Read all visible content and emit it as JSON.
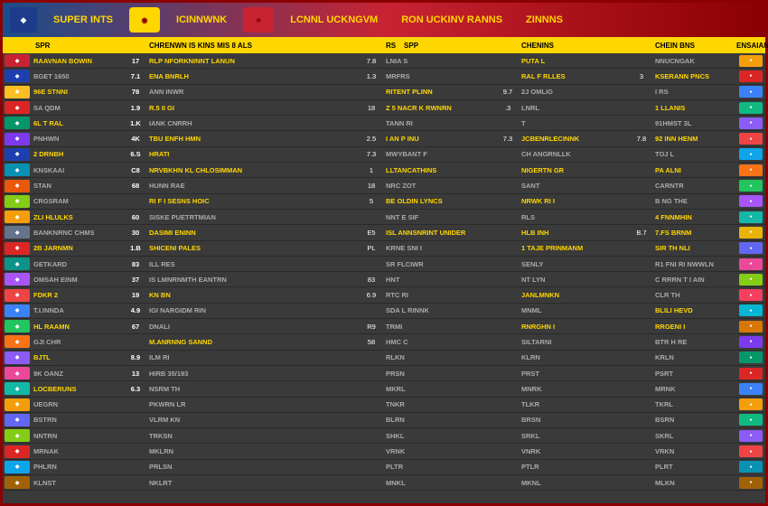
{
  "banner": {
    "tabs": [
      "SUPER INTS",
      "ICINNWNK",
      "LCNNL UCKNGVM",
      "RON UCKINV RANNS",
      "ZINNNS"
    ]
  },
  "headers": {
    "h1": "SPR",
    "h2": "CHRENWN IS KINS MIS 8 ALS",
    "h3": "RS",
    "h4": "SPP",
    "h5": "CHENINS",
    "h6": "CHEIN BNS",
    "h7": "ENSAIAN"
  },
  "colors": {
    "icons": [
      "#c82333",
      "#1e40af",
      "#fbbf24",
      "#dc2626",
      "#059669",
      "#7c3aed",
      "#1e40af",
      "#0891b2",
      "#ea580c",
      "#84cc16",
      "#f59e0b",
      "#64748b",
      "#dc2626",
      "#0d9488",
      "#a855f7",
      "#ef4444",
      "#3b82f6",
      "#22c55e",
      "#f97316",
      "#8b5cf6",
      "#ec4899",
      "#14b8a6",
      "#f59e0b",
      "#6366f1",
      "#84cc16",
      "#dc2626",
      "#0ea5e9",
      "#a16207"
    ],
    "logos": [
      "#f59e0b",
      "#dc2626",
      "#3b82f6",
      "#10b981",
      "#8b5cf6",
      "#ef4444",
      "#0ea5e9",
      "#f97316",
      "#22c55e",
      "#a855f7",
      "#14b8a6",
      "#eab308",
      "#6366f1",
      "#ec4899",
      "#84cc16",
      "#f43f5e",
      "#06b6d4",
      "#d97706",
      "#7c3aed",
      "#059669",
      "#dc2626",
      "#3b82f6",
      "#f59e0b",
      "#10b981",
      "#8b5cf6",
      "#ef4444",
      "#0891b2",
      "#a16207"
    ]
  },
  "left": [
    {
      "name": "RAAVNAN BOWIN",
      "n1": "17",
      "dim": false
    },
    {
      "name": "BGET 1650",
      "n1": "7.1",
      "dim": true
    },
    {
      "name": "96E STNNI",
      "n1": "78",
      "dim": false
    },
    {
      "name": "SA QDM",
      "n1": "1.9",
      "dim": true
    },
    {
      "name": "6L T RAL",
      "n1": "1.K",
      "dim": false
    },
    {
      "name": "PNHWN",
      "n1": "4K",
      "dim": true
    },
    {
      "name": "2 DRNBH",
      "n1": "6.S",
      "dim": false
    },
    {
      "name": "KNSKAAI",
      "n1": "C8",
      "dim": true
    },
    {
      "name": "STAN",
      "n1": "68",
      "dim": true
    },
    {
      "name": "CRGSRAM",
      "n1": "",
      "dim": true
    },
    {
      "name": "ZLI HLULKS",
      "n1": "60",
      "dim": false
    },
    {
      "name": "BANKNRNC CHMS",
      "n1": "30",
      "dim": true
    },
    {
      "name": "2B JARNMN",
      "n1": "1.B",
      "dim": false
    },
    {
      "name": "GETKARD",
      "n1": "83",
      "dim": true
    },
    {
      "name": "OMSAH EINM",
      "n1": "37",
      "dim": true
    },
    {
      "name": "FDKR 2",
      "n1": "19",
      "dim": false
    },
    {
      "name": "T.I.INNDA",
      "n1": "4.9",
      "dim": true
    },
    {
      "name": "HL RAAMN",
      "n1": "67",
      "dim": false
    },
    {
      "name": "GJI CHR",
      "n1": "",
      "dim": true
    },
    {
      "name": "BJTL",
      "n1": "8.9",
      "dim": false
    },
    {
      "name": "9K OANZ",
      "n1": "13",
      "dim": true
    },
    {
      "name": "LOCBERUNS",
      "n1": "6.3",
      "dim": false
    },
    {
      "name": "UEGRN",
      "n1": "",
      "dim": true
    },
    {
      "name": "BSTRN",
      "n1": "",
      "dim": true
    },
    {
      "name": "NNTRN",
      "n1": "",
      "dim": true
    },
    {
      "name": "MRNAK",
      "n1": "",
      "dim": true
    },
    {
      "name": "PHLRN",
      "n1": "",
      "dim": true
    },
    {
      "name": "KLNST",
      "n1": "",
      "dim": true
    }
  ],
  "mid": [
    {
      "name": "RLP NFORKNINNT LANUN",
      "n": "7.8",
      "dim": false
    },
    {
      "name": "ENA BNRLH",
      "n": "1.3",
      "dim": false
    },
    {
      "name": "ANN INWR",
      "n": "",
      "dim": true
    },
    {
      "name": "R.5 II GI",
      "n": "18",
      "dim": false
    },
    {
      "name": "IANK CNRRH",
      "n": "",
      "dim": true
    },
    {
      "name": "TBU ENFH HMN",
      "n": "2.5",
      "dim": false
    },
    {
      "name": "HRATI",
      "n": "7.3",
      "dim": false
    },
    {
      "name": "NRVBKHN KL CHLOSIMMAN",
      "n": "1",
      "dim": false
    },
    {
      "name": "HUNN RAE",
      "n": "18",
      "dim": true
    },
    {
      "name": "RI F I SESNS HOIC",
      "n": "5",
      "dim": false
    },
    {
      "name": "SISKE PUETRTMIAN",
      "n": "",
      "dim": true
    },
    {
      "name": "DASIMI ENINN",
      "n": "E5",
      "dim": false
    },
    {
      "name": "SHICENI PALES",
      "n": "PL",
      "dim": false
    },
    {
      "name": "ILL RES",
      "n": "",
      "dim": true
    },
    {
      "name": "IS LMNRNMTH EANTRN",
      "n": "83",
      "dim": true
    },
    {
      "name": "KN BN",
      "n": "6.9",
      "dim": false
    },
    {
      "name": "IGI NARGIDM RIN",
      "n": "",
      "dim": true
    },
    {
      "name": "DNALI",
      "n": "R9",
      "dim": true
    },
    {
      "name": "M.ANRNNG SANND",
      "n": "58",
      "dim": false
    },
    {
      "name": "ILM RI",
      "n": "",
      "dim": true
    },
    {
      "name": "HIRB 35/193",
      "n": "",
      "dim": true
    },
    {
      "name": "NSRM TH",
      "n": "",
      "dim": true
    },
    {
      "name": "PKWRN LR",
      "n": "",
      "dim": true
    },
    {
      "name": "VLRM KN",
      "n": "",
      "dim": true
    },
    {
      "name": "TRKSN",
      "n": "",
      "dim": true
    },
    {
      "name": "MKLRN",
      "n": "",
      "dim": true
    },
    {
      "name": "PRLSN",
      "n": "",
      "dim": true
    },
    {
      "name": "NKLRT",
      "n": "",
      "dim": true
    }
  ],
  "r1": [
    {
      "name": "LNIA S",
      "n": "",
      "dim": true
    },
    {
      "name": "MRFRS",
      "n": "",
      "dim": true
    },
    {
      "name": "RITENT PLINN",
      "n": "9.7",
      "dim": false
    },
    {
      "name": "Z 5 NACR K RWNRN",
      "n": ".3",
      "dim": false
    },
    {
      "name": "TANN RI",
      "n": "",
      "dim": true
    },
    {
      "name": "I AN P INU",
      "n": "7.3",
      "dim": false
    },
    {
      "name": "MWYBANT F",
      "n": "",
      "dim": true
    },
    {
      "name": "LLTANCATHINS",
      "n": "",
      "dim": false
    },
    {
      "name": "NRC ZOT",
      "n": "",
      "dim": true
    },
    {
      "name": "BE OLDIN LYNCS",
      "n": "",
      "dim": false
    },
    {
      "name": "NNT E SIF",
      "n": "",
      "dim": true
    },
    {
      "name": "ISL ANNSNRINT UNIDER",
      "n": "",
      "dim": false
    },
    {
      "name": "KRNE SNI I",
      "n": "",
      "dim": true
    },
    {
      "name": "SR FLCIWR",
      "n": "",
      "dim": true
    },
    {
      "name": "HNT",
      "n": "",
      "dim": true
    },
    {
      "name": "RTC RI",
      "n": "",
      "dim": true
    },
    {
      "name": "SDA L RINNK",
      "n": "",
      "dim": true
    },
    {
      "name": "TRMI",
      "n": "",
      "dim": true
    },
    {
      "name": "HMC C",
      "n": "",
      "dim": true
    },
    {
      "name": "RLKN",
      "n": "",
      "dim": true
    },
    {
      "name": "PRSN",
      "n": "",
      "dim": true
    },
    {
      "name": "MKRL",
      "n": "",
      "dim": true
    },
    {
      "name": "TNKR",
      "n": "",
      "dim": true
    },
    {
      "name": "BLRN",
      "n": "",
      "dim": true
    },
    {
      "name": "SHKL",
      "n": "",
      "dim": true
    },
    {
      "name": "VRNK",
      "n": "",
      "dim": true
    },
    {
      "name": "PLTR",
      "n": "",
      "dim": true
    },
    {
      "name": "MNKL",
      "n": "",
      "dim": true
    }
  ],
  "r2": [
    {
      "name": "PUTA L",
      "n": "",
      "dim": false
    },
    {
      "name": "RAL F RLLES",
      "n": "3",
      "dim": false
    },
    {
      "name": "2J OMLIG",
      "n": "",
      "dim": true
    },
    {
      "name": "LNRL",
      "n": "",
      "dim": true
    },
    {
      "name": "T",
      "n": "",
      "dim": true
    },
    {
      "name": "JCBENRLECINNK",
      "n": "7.8",
      "dim": false
    },
    {
      "name": "CH ANGRNLLK",
      "n": "",
      "dim": true
    },
    {
      "name": "NIGERTN GR",
      "n": "",
      "dim": false
    },
    {
      "name": "SANT",
      "n": "",
      "dim": true
    },
    {
      "name": "NRWK RI I",
      "n": "",
      "dim": false
    },
    {
      "name": "RLS",
      "n": "",
      "dim": true
    },
    {
      "name": "HLB INH",
      "n": "B.7",
      "dim": false
    },
    {
      "name": "1 TAJE PRINMANM",
      "n": "",
      "dim": false
    },
    {
      "name": "SENLY",
      "n": "",
      "dim": true
    },
    {
      "name": "NT LYN",
      "n": "",
      "dim": true
    },
    {
      "name": "JANLMNKN",
      "n": "",
      "dim": false
    },
    {
      "name": "MNML",
      "n": "",
      "dim": true
    },
    {
      "name": "RNRGHN I",
      "n": "",
      "dim": false
    },
    {
      "name": "SILTARNI",
      "n": "",
      "dim": true
    },
    {
      "name": "KLRN",
      "n": "",
      "dim": true
    },
    {
      "name": "PRST",
      "n": "",
      "dim": true
    },
    {
      "name": "MNRK",
      "n": "",
      "dim": true
    },
    {
      "name": "TLKR",
      "n": "",
      "dim": true
    },
    {
      "name": "BRSN",
      "n": "",
      "dim": true
    },
    {
      "name": "SRKL",
      "n": "",
      "dim": true
    },
    {
      "name": "VNRK",
      "n": "",
      "dim": true
    },
    {
      "name": "PTLR",
      "n": "",
      "dim": true
    },
    {
      "name": "MKNL",
      "n": "",
      "dim": true
    }
  ],
  "r3": [
    {
      "name": "NNUCNGAK",
      "dim": true
    },
    {
      "name": "KSERANN PNCS",
      "dim": false
    },
    {
      "name": "I RS",
      "dim": true
    },
    {
      "name": "1 LLANIS",
      "dim": false
    },
    {
      "name": "91HMST 3L",
      "dim": true
    },
    {
      "name": "92 INN HENM",
      "dim": false
    },
    {
      "name": "TOJ L",
      "dim": true
    },
    {
      "name": "PA ALNI",
      "dim": false
    },
    {
      "name": "CARNTR",
      "dim": true
    },
    {
      "name": "B NG THE",
      "dim": true
    },
    {
      "name": "4 FNNMHIN",
      "dim": false
    },
    {
      "name": "7.FS BRNM",
      "dim": false
    },
    {
      "name": "SIR TH NLI",
      "dim": false
    },
    {
      "name": "R1 FNI RI NWWLN",
      "dim": true
    },
    {
      "name": "C RRRN T I AIN",
      "dim": true
    },
    {
      "name": "CLR TH",
      "dim": true
    },
    {
      "name": "BLILI HEVD",
      "dim": false
    },
    {
      "name": "RRGENI I",
      "dim": false
    },
    {
      "name": "BTR H RE",
      "dim": true
    },
    {
      "name": "KRLN",
      "dim": true
    },
    {
      "name": "PSRT",
      "dim": true
    },
    {
      "name": "MRNK",
      "dim": true
    },
    {
      "name": "TKRL",
      "dim": true
    },
    {
      "name": "BSRN",
      "dim": true
    },
    {
      "name": "SKRL",
      "dim": true
    },
    {
      "name": "VRKN",
      "dim": true
    },
    {
      "name": "PLRT",
      "dim": true
    },
    {
      "name": "MLKN",
      "dim": true
    }
  ]
}
